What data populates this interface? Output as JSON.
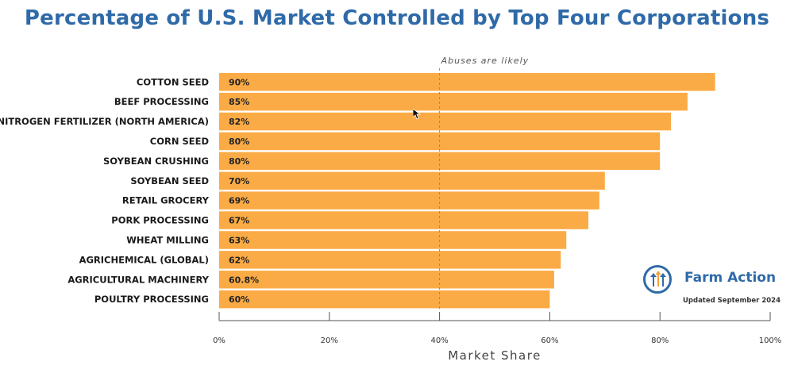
{
  "colors": {
    "title": "#2f6aa8",
    "bar": "#fbab45",
    "threshold_line": "#888888",
    "logo_blue": "#2f6aa8",
    "logo_orange": "#f5a03a"
  },
  "chart_data": {
    "type": "bar",
    "orientation": "horizontal",
    "title": "Percentage of U.S. Market Controlled by Top Four Corporations",
    "xlabel": "Market Share",
    "ylabel": "",
    "xlim": [
      0,
      100
    ],
    "x_ticks": [
      "0%",
      "20%",
      "40%",
      "60%",
      "80%",
      "100%"
    ],
    "grid": false,
    "categories": [
      "COTTON SEED",
      "BEEF PROCESSING",
      "NITROGEN FERTILIZER (NORTH AMERICA)",
      "CORN SEED",
      "SOYBEAN CRUSHING",
      "SOYBEAN SEED",
      "RETAIL GROCERY",
      "PORK PROCESSING",
      "WHEAT MILLING",
      "AGRICHEMICAL (GLOBAL)",
      "AGRICULTURAL MACHINERY",
      "POULTRY PROCESSING"
    ],
    "values": [
      90,
      85,
      82,
      80,
      80,
      70,
      69,
      67,
      63,
      62,
      60.8,
      60
    ],
    "value_labels": [
      "90%",
      "85%",
      "82%",
      "80%",
      "80%",
      "70%",
      "69%",
      "67%",
      "63%",
      "62%",
      "60.8%",
      "60%"
    ],
    "threshold": {
      "value": 40,
      "label": "Abuses are likely"
    }
  },
  "logo": {
    "icon": "farm-action-logo-icon",
    "name": "Farm Action",
    "updated": "Updated September 2024"
  }
}
